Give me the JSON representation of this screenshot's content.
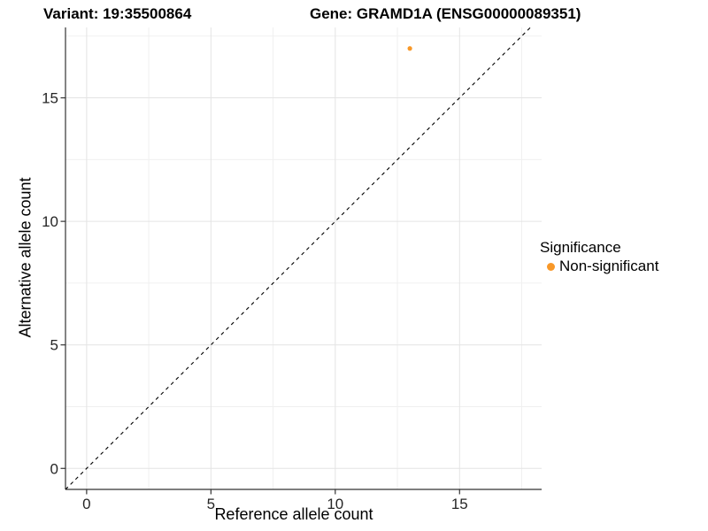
{
  "titles": {
    "variant": "Variant: 19:35500864",
    "gene": "Gene: GRAMD1A (ENSG00000089351)"
  },
  "chart_data": {
    "type": "scatter",
    "title": "Variant: 19:35500864   Gene: GRAMD1A (ENSG00000089351)",
    "xlabel": "Reference allele count",
    "ylabel": "Alternative allele count",
    "xlim": [
      -0.85,
      18.3
    ],
    "ylim": [
      -0.85,
      17.85
    ],
    "x_ticks": [
      0,
      5,
      10,
      15
    ],
    "y_ticks": [
      0,
      5,
      10,
      15
    ],
    "x_minor": [
      2.5,
      7.5,
      12.5,
      17.5
    ],
    "y_minor": [
      2.5,
      7.5,
      12.5,
      17.5
    ],
    "grid": "major+minor",
    "points": [
      {
        "x": 13,
        "y": 17,
        "series": "Non-significant"
      }
    ],
    "reference_line": {
      "kind": "identity",
      "slope": 1,
      "intercept": 0,
      "style": "dashed",
      "color": "#000000"
    },
    "legend": {
      "title": "Significance",
      "position": "right",
      "items": [
        {
          "label": "Non-significant",
          "color": "#F89828"
        }
      ]
    },
    "style": {
      "background": "#FFFFFF",
      "grid_major": "#E4E4E4",
      "grid_minor": "#F0F0F0",
      "axis_line": "#333333",
      "tick_mark": "#333333",
      "point_color": "#F89828"
    }
  }
}
